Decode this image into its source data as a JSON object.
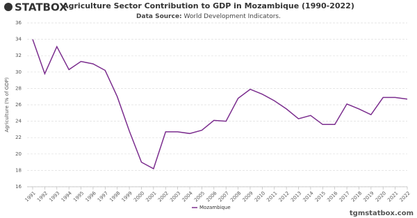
{
  "logo": "STATBOX",
  "footer": "tgmstatbox.com",
  "chart_data": {
    "type": "line",
    "title": "Agriculture Sector Contribution to GDP in Mozambique (1990-2022)",
    "subtitle_label": "Data Source:",
    "subtitle": "World Development Indicators.",
    "y_label": "Agriculture (% of GDP)",
    "categories": [
      "1991",
      "1992",
      "1993",
      "1994",
      "1995",
      "1996",
      "1997",
      "1998",
      "1999",
      "2000",
      "2001",
      "2002",
      "2003",
      "2004",
      "2005",
      "2006",
      "2007",
      "2008",
      "2009",
      "2010",
      "2011",
      "2012",
      "2013",
      "2014",
      "2015",
      "2016",
      "2017",
      "2018",
      "2019",
      "2020",
      "2021",
      "2022"
    ],
    "series": [
      {
        "name": "Mozambique",
        "color": "#7b2d8e",
        "values": [
          34.0,
          29.8,
          33.1,
          30.3,
          31.3,
          31.0,
          30.2,
          27.0,
          22.8,
          19.0,
          18.2,
          22.7,
          22.7,
          22.5,
          22.9,
          24.1,
          24.0,
          26.8,
          27.9,
          27.3,
          26.5,
          25.5,
          24.3,
          24.7,
          23.6,
          23.6,
          26.1,
          25.5,
          24.8,
          26.9,
          26.9,
          26.7
        ]
      }
    ],
    "ylim": [
      16,
      36
    ],
    "yticks": [
      16,
      18,
      20,
      22,
      24,
      26,
      28,
      30,
      32,
      34,
      36
    ],
    "grid": true,
    "legend": "bottom"
  }
}
